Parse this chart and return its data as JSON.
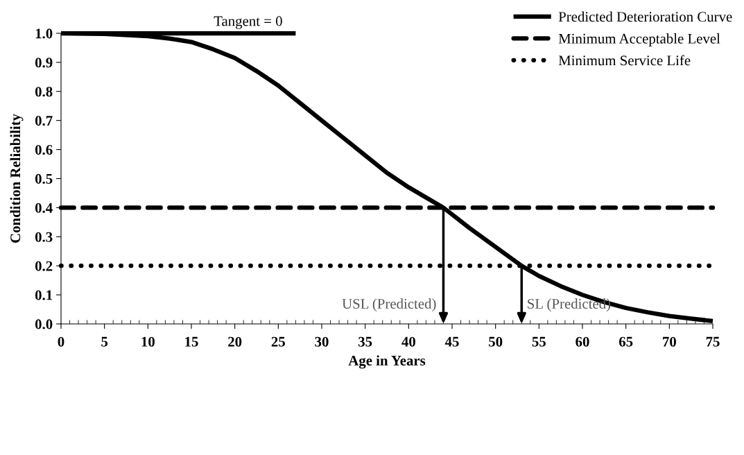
{
  "chart_data": {
    "type": "line",
    "xlabel": "Age in Years",
    "ylabel": "Condition Reliability",
    "xlim": [
      0,
      75
    ],
    "ylim": [
      0,
      1.0
    ],
    "xticks": [
      0,
      5,
      10,
      15,
      20,
      25,
      30,
      35,
      40,
      45,
      50,
      55,
      60,
      65,
      70,
      75
    ],
    "yticks": [
      {
        "value": 0,
        "label": "0.0"
      },
      {
        "value": 0.1,
        "label": "0.1"
      },
      {
        "value": 0.2,
        "label": "0.2"
      },
      {
        "value": 0.3,
        "label": "0.3"
      },
      {
        "value": 0.4,
        "label": "0.4"
      },
      {
        "value": 0.5,
        "label": "0.5"
      },
      {
        "value": 0.6,
        "label": "0.6"
      },
      {
        "value": 0.7,
        "label": "0.7"
      },
      {
        "value": 0.8,
        "label": "0.8"
      },
      {
        "value": 0.9,
        "label": "0.9"
      },
      {
        "value": 1.0,
        "label": "1.0"
      }
    ],
    "grid": false,
    "legend": "top right",
    "marker": "none",
    "series": [
      {
        "name": "Predicted Deterioration Curve",
        "color": "#000000",
        "line_style": "solid",
        "x": [
          0,
          5,
          10,
          12.5,
          15,
          17.5,
          20,
          22.5,
          25,
          27.5,
          30,
          32.5,
          35,
          37.5,
          40,
          42,
          44,
          47,
          50,
          53,
          55,
          57.5,
          60,
          62.5,
          65,
          67.5,
          70,
          72.5,
          75
        ],
        "values": [
          1.0,
          0.998,
          0.99,
          0.982,
          0.97,
          0.945,
          0.915,
          0.87,
          0.82,
          0.76,
          0.7,
          0.64,
          0.58,
          0.52,
          0.47,
          0.435,
          0.4,
          0.33,
          0.265,
          0.2,
          0.165,
          0.13,
          0.1,
          0.075,
          0.055,
          0.04,
          0.027,
          0.018,
          0.01
        ]
      },
      {
        "name": "Minimum Acceptable Level",
        "color": "#000000",
        "line_style": "dashed",
        "x": [
          0,
          75
        ],
        "values": [
          0.4,
          0.4
        ]
      },
      {
        "name": "Minimum Service Life",
        "color": "#000000",
        "line_style": "dotted",
        "x": [
          0,
          75
        ],
        "values": [
          0.2,
          0.2
        ]
      },
      {
        "color": "#000000",
        "line_style": "solid",
        "x": [
          0,
          27
        ],
        "values": [
          1.0,
          1.0
        ]
      }
    ],
    "annotations": [
      {
        "text": "Tangent = 0",
        "x": 27,
        "y": 1.0
      },
      {
        "text": "USL (Predicted)",
        "x": 44,
        "y": 0.4
      },
      {
        "text": "SL (Predicted)",
        "x": 53,
        "y": 0.2
      }
    ]
  }
}
